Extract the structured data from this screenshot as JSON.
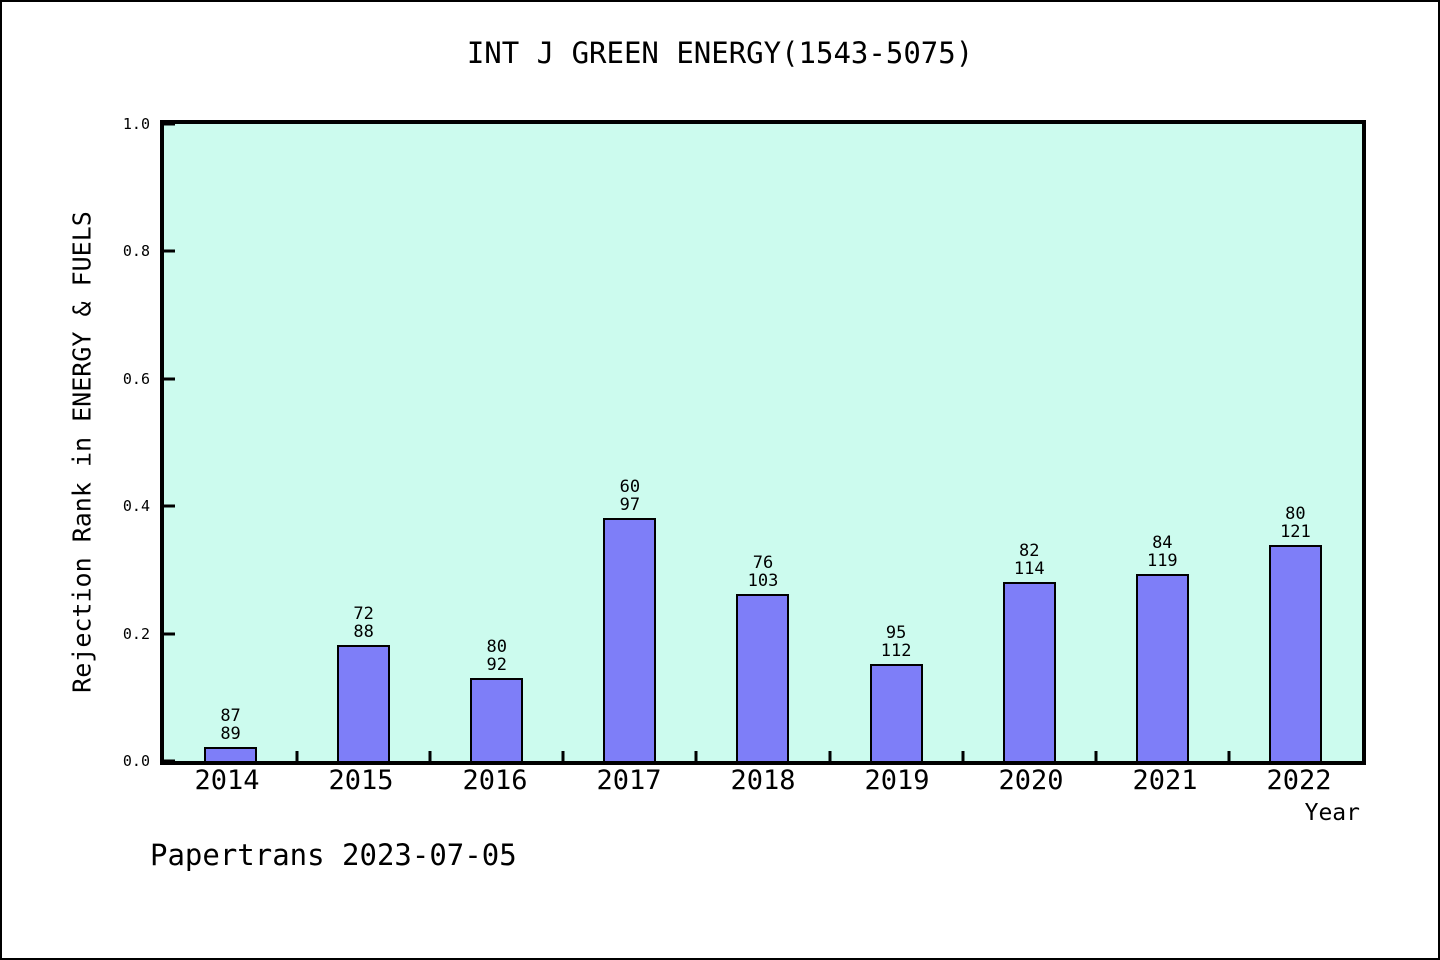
{
  "title": "INT J GREEN ENERGY(1543-5075)",
  "ylabel": "Rejection Rank in ENERGY & FUELS",
  "xlabel": "Year",
  "footer": "Papertrans 2023-07-05",
  "colors": {
    "page_bg": "#ffffff",
    "plot_bg": "#ccfbee",
    "bar_fill": "#7e7ef8",
    "bar_edge": "#000000",
    "axis": "#000000"
  },
  "chart_data": {
    "type": "bar",
    "title": "INT J GREEN ENERGY(1543-5075)",
    "xlabel": "Year",
    "ylabel": "Rejection Rank in ENERGY & FUELS",
    "ylim": [
      0.0,
      1.0
    ],
    "y_ticks": [
      "0.0",
      "0.2",
      "0.4",
      "0.6",
      "0.8",
      "1.0"
    ],
    "grid": false,
    "legend": null,
    "categories": [
      "2014",
      "2015",
      "2016",
      "2017",
      "2018",
      "2019",
      "2020",
      "2021",
      "2022"
    ],
    "values": [
      0.0225,
      0.1818,
      0.1304,
      0.3814,
      0.2621,
      0.1518,
      0.2807,
      0.2941,
      0.3388
    ],
    "bar_annotations": [
      {
        "top": "87",
        "bottom": "89"
      },
      {
        "top": "72",
        "bottom": "88"
      },
      {
        "top": "80",
        "bottom": "92"
      },
      {
        "top": "60",
        "bottom": "97"
      },
      {
        "top": "76",
        "bottom": "103"
      },
      {
        "top": "95",
        "bottom": "112"
      },
      {
        "top": "82",
        "bottom": "114"
      },
      {
        "top": "84",
        "bottom": "119"
      },
      {
        "top": "80",
        "bottom": "121"
      }
    ]
  }
}
